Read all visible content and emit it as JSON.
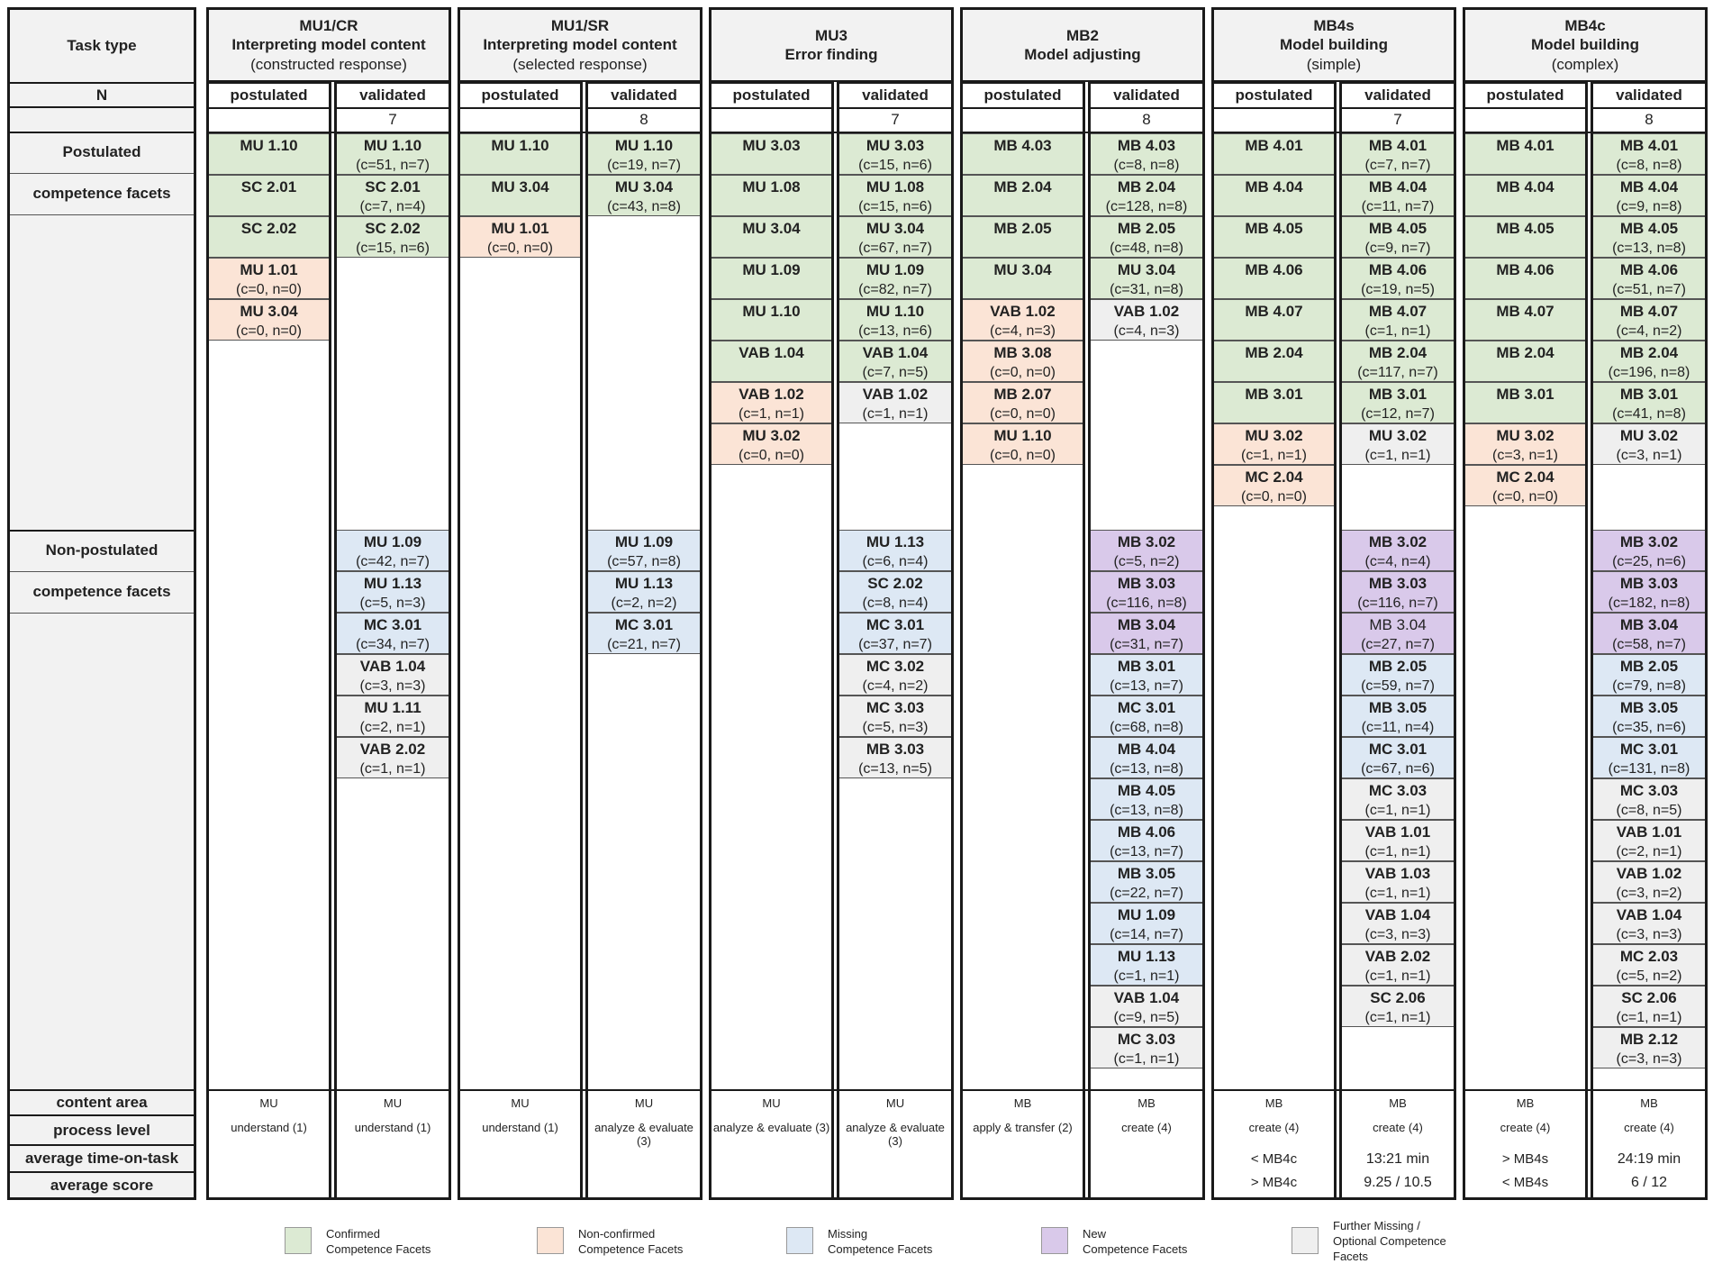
{
  "row_labels": {
    "task_type": "Task type",
    "n": "N",
    "postulated": [
      "Postulated",
      "competence facets"
    ],
    "non_postulated": [
      "Non-postulated",
      "competence facets"
    ],
    "content_area": "content area",
    "process_level": "process level",
    "avg_time": "average time-on-task",
    "avg_score": "average score"
  },
  "sub_labels": {
    "postulated": "postulated",
    "validated": "validated"
  },
  "colors": {
    "green": "#dcead3",
    "orange": "#fbe4d6",
    "blue": "#dde8f4",
    "purple": "#d9c9ea",
    "gray": "#efefef"
  },
  "groups": [
    {
      "code": "MU1/CR",
      "name": "Interpreting model content",
      "sub": "(constructed response)",
      "n": "7",
      "content_area": [
        "MU",
        "MU"
      ],
      "process_level": [
        "understand (1)",
        "understand (1)"
      ],
      "avg_time": [
        "",
        ""
      ],
      "avg_score": [
        "",
        ""
      ],
      "postulated": [
        {
          "slot": 0,
          "color": "green",
          "code": "MU 1.10"
        },
        {
          "slot": 1,
          "color": "green",
          "code": "SC 2.01"
        },
        {
          "slot": 2,
          "color": "green",
          "code": "SC 2.02"
        },
        {
          "slot": 3,
          "color": "orange",
          "code": "MU 1.01",
          "counts": "(c=0, n=0)"
        },
        {
          "slot": 4,
          "color": "orange",
          "code": "MU 3.04",
          "counts": "(c=0, n=0)"
        }
      ],
      "validated": [
        {
          "slot": 0,
          "color": "green",
          "code": "MU 1.10",
          "counts": "(c=51, n=7)"
        },
        {
          "slot": 1,
          "color": "green",
          "code": "SC 2.01",
          "counts": "(c=7, n=4)"
        },
        {
          "slot": 2,
          "color": "green",
          "code": "SC 2.02",
          "counts": "(c=15, n=6)"
        },
        {
          "slot": 10,
          "color": "blue",
          "code": "MU 1.09",
          "counts": "(c=42, n=7)"
        },
        {
          "slot": 11,
          "color": "blue",
          "code": "MU 1.13",
          "counts": "(c=5, n=3)"
        },
        {
          "slot": 12,
          "color": "blue",
          "code": "MC 3.01",
          "counts": "(c=34, n=7)"
        },
        {
          "slot": 13,
          "color": "gray",
          "code": "VAB 1.04",
          "counts": "(c=3, n=3)"
        },
        {
          "slot": 14,
          "color": "gray",
          "code": "MU 1.11",
          "counts": "(c=2, n=1)"
        },
        {
          "slot": 15,
          "color": "gray",
          "code": "VAB 2.02",
          "counts": "(c=1, n=1)"
        }
      ]
    },
    {
      "code": "MU1/SR",
      "name": "Interpreting model content",
      "sub": "(selected response)",
      "n": "8",
      "content_area": [
        "MU",
        "MU"
      ],
      "process_level": [
        "understand (1)",
        "analyze & evaluate (3)"
      ],
      "avg_time": [
        "",
        ""
      ],
      "avg_score": [
        "",
        ""
      ],
      "postulated": [
        {
          "slot": 0,
          "color": "green",
          "code": "MU 1.10"
        },
        {
          "slot": 1,
          "color": "green",
          "code": "MU 3.04"
        },
        {
          "slot": 2,
          "color": "orange",
          "code": "MU 1.01",
          "counts": "(c=0, n=0)"
        }
      ],
      "validated": [
        {
          "slot": 0,
          "color": "green",
          "code": "MU 1.10",
          "counts": "(c=19, n=7)"
        },
        {
          "slot": 1,
          "color": "green",
          "code": "MU 3.04",
          "counts": "(c=43, n=8)"
        },
        {
          "slot": 10,
          "color": "blue",
          "code": "MU 1.09",
          "counts": "(c=57, n=8)"
        },
        {
          "slot": 11,
          "color": "blue",
          "code": "MU 1.13",
          "counts": "(c=2, n=2)"
        },
        {
          "slot": 12,
          "color": "blue",
          "code": "MC 3.01",
          "counts": "(c=21, n=7)"
        }
      ]
    },
    {
      "code": "MU3",
      "name": "Error finding",
      "sub": "",
      "n": "7",
      "content_area": [
        "MU",
        "MU"
      ],
      "process_level": [
        "analyze & evaluate (3)",
        "analyze & evaluate (3)"
      ],
      "avg_time": [
        "",
        ""
      ],
      "avg_score": [
        "",
        ""
      ],
      "postulated": [
        {
          "slot": 0,
          "color": "green",
          "code": "MU 3.03"
        },
        {
          "slot": 1,
          "color": "green",
          "code": "MU 1.08"
        },
        {
          "slot": 2,
          "color": "green",
          "code": "MU 3.04"
        },
        {
          "slot": 3,
          "color": "green",
          "code": "MU 1.09"
        },
        {
          "slot": 4,
          "color": "green",
          "code": "MU 1.10"
        },
        {
          "slot": 5,
          "color": "green",
          "code": "VAB 1.04"
        },
        {
          "slot": 6,
          "color": "orange",
          "code": "VAB 1.02",
          "counts": "(c=1, n=1)"
        },
        {
          "slot": 7,
          "color": "orange",
          "code": "MU 3.02",
          "counts": "(c=0, n=0)"
        }
      ],
      "validated": [
        {
          "slot": 0,
          "color": "green",
          "code": "MU 3.03",
          "counts": "(c=15, n=6)"
        },
        {
          "slot": 1,
          "color": "green",
          "code": "MU 1.08",
          "counts": "(c=15, n=6)"
        },
        {
          "slot": 2,
          "color": "green",
          "code": "MU 3.04",
          "counts": "(c=67, n=7)"
        },
        {
          "slot": 3,
          "color": "green",
          "code": "MU 1.09",
          "counts": "(c=82, n=7)"
        },
        {
          "slot": 4,
          "color": "green",
          "code": "MU 1.10",
          "counts": "(c=13, n=6)"
        },
        {
          "slot": 5,
          "color": "green",
          "code": "VAB 1.04",
          "counts": "(c=7, n=5)"
        },
        {
          "slot": 6,
          "color": "gray",
          "code": "VAB 1.02",
          "counts": "(c=1, n=1)"
        },
        {
          "slot": 10,
          "color": "blue",
          "code": "MU 1.13",
          "counts": "(c=6, n=4)"
        },
        {
          "slot": 11,
          "color": "blue",
          "code": "SC 2.02",
          "counts": "(c=8, n=4)"
        },
        {
          "slot": 12,
          "color": "blue",
          "code": "MC 3.01",
          "counts": "(c=37, n=7)"
        },
        {
          "slot": 13,
          "color": "gray",
          "code": "MC 3.02",
          "counts": "(c=4, n=2)"
        },
        {
          "slot": 14,
          "color": "gray",
          "code": "MC 3.03",
          "counts": "(c=5, n=3)"
        },
        {
          "slot": 15,
          "color": "gray",
          "code": "MB 3.03",
          "counts": "(c=13, n=5)"
        }
      ]
    },
    {
      "code": "MB2",
      "name": "Model adjusting",
      "sub": "",
      "n": "8",
      "content_area": [
        "MB",
        "MB"
      ],
      "process_level": [
        "apply & transfer (2)",
        "create (4)"
      ],
      "avg_time": [
        "",
        ""
      ],
      "avg_score": [
        "",
        ""
      ],
      "postulated": [
        {
          "slot": 0,
          "color": "green",
          "code": "MB 4.03"
        },
        {
          "slot": 1,
          "color": "green",
          "code": "MB 2.04"
        },
        {
          "slot": 2,
          "color": "green",
          "code": "MB 2.05"
        },
        {
          "slot": 3,
          "color": "green",
          "code": "MU 3.04"
        },
        {
          "slot": 4,
          "color": "orange",
          "code": "VAB 1.02",
          "counts": "(c=4, n=3)"
        },
        {
          "slot": 5,
          "color": "orange",
          "code": "MB 3.08",
          "counts": "(c=0, n=0)"
        },
        {
          "slot": 6,
          "color": "orange",
          "code": "MB 2.07",
          "counts": "(c=0, n=0)"
        },
        {
          "slot": 7,
          "color": "orange",
          "code": "MU 1.10",
          "counts": "(c=0, n=0)"
        }
      ],
      "validated": [
        {
          "slot": 0,
          "color": "green",
          "code": "MB 4.03",
          "counts": "(c=8, n=8)"
        },
        {
          "slot": 1,
          "color": "green",
          "code": "MB 2.04",
          "counts": "(c=128, n=8)"
        },
        {
          "slot": 2,
          "color": "green",
          "code": "MB 2.05",
          "counts": "(c=48, n=8)"
        },
        {
          "slot": 3,
          "color": "green",
          "code": "MU 3.04",
          "counts": "(c=31, n=8)"
        },
        {
          "slot": 4,
          "color": "gray",
          "code": "VAB 1.02",
          "counts": "(c=4, n=3)"
        },
        {
          "slot": 10,
          "color": "purple",
          "code": "MB 3.02",
          "counts": "(c=5, n=2)"
        },
        {
          "slot": 11,
          "color": "purple",
          "code": "MB 3.03",
          "counts": "(c=116, n=8)"
        },
        {
          "slot": 12,
          "color": "purple",
          "code": "MB 3.04",
          "counts": "(c=31, n=7)"
        },
        {
          "slot": 13,
          "color": "blue",
          "code": "MB 3.01",
          "counts": "(c=13, n=7)"
        },
        {
          "slot": 14,
          "color": "blue",
          "code": "MC 3.01",
          "counts": "(c=68, n=8)"
        },
        {
          "slot": 15,
          "color": "blue",
          "code": "MB 4.04",
          "counts": "(c=13, n=8)"
        },
        {
          "slot": 16,
          "color": "blue",
          "code": "MB 4.05",
          "counts": "(c=13, n=8)"
        },
        {
          "slot": 17,
          "color": "blue",
          "code": "MB 4.06",
          "counts": "(c=13, n=7)"
        },
        {
          "slot": 18,
          "color": "blue",
          "code": "MB 3.05",
          "counts": "(c=22, n=7)"
        },
        {
          "slot": 19,
          "color": "blue",
          "code": "MU 1.09",
          "counts": "(c=14, n=7)"
        },
        {
          "slot": 20,
          "color": "blue",
          "code": "MU 1.13",
          "counts": "(c=1, n=1)"
        },
        {
          "slot": 21,
          "color": "gray",
          "code": "VAB 1.04",
          "counts": "(c=9, n=5)"
        },
        {
          "slot": 22,
          "color": "gray",
          "code": "MC 3.03",
          "counts": "(c=1, n=1)"
        }
      ]
    },
    {
      "code": "MB4s",
      "name": "Model building",
      "sub": "(simple)",
      "n": "7",
      "content_area": [
        "MB",
        "MB"
      ],
      "process_level": [
        "create (4)",
        "create (4)"
      ],
      "avg_time": [
        "< MB4c",
        "13:21 min"
      ],
      "avg_score": [
        "> MB4c",
        "9.25 / 10.5"
      ],
      "postulated": [
        {
          "slot": 0,
          "color": "green",
          "code": "MB 4.01"
        },
        {
          "slot": 1,
          "color": "green",
          "code": "MB 4.04"
        },
        {
          "slot": 2,
          "color": "green",
          "code": "MB 4.05"
        },
        {
          "slot": 3,
          "color": "green",
          "code": "MB 4.06"
        },
        {
          "slot": 4,
          "color": "green",
          "code": "MB 4.07"
        },
        {
          "slot": 5,
          "color": "green",
          "code": "MB 2.04"
        },
        {
          "slot": 6,
          "color": "green",
          "code": "MB 3.01"
        },
        {
          "slot": 7,
          "color": "orange",
          "code": "MU 3.02",
          "counts": "(c=1, n=1)"
        },
        {
          "slot": 8,
          "color": "orange",
          "code": "MC 2.04",
          "counts": "(c=0, n=0)"
        }
      ],
      "validated": [
        {
          "slot": 0,
          "color": "green",
          "code": "MB 4.01",
          "counts": "(c=7, n=7)"
        },
        {
          "slot": 1,
          "color": "green",
          "code": "MB 4.04",
          "counts": "(c=11, n=7)"
        },
        {
          "slot": 2,
          "color": "green",
          "code": "MB 4.05",
          "counts": "(c=9, n=7)"
        },
        {
          "slot": 3,
          "color": "green",
          "code": "MB 4.06",
          "counts": "(c=19, n=5)"
        },
        {
          "slot": 4,
          "color": "green",
          "code": "MB 4.07",
          "counts": "(c=1, n=1)"
        },
        {
          "slot": 5,
          "color": "green",
          "code": "MB 2.04",
          "counts": "(c=117, n=7)"
        },
        {
          "slot": 6,
          "color": "green",
          "code": "MB 3.01",
          "counts": "(c=12, n=7)"
        },
        {
          "slot": 7,
          "color": "gray",
          "code": "MU 3.02",
          "counts": "(c=1, n=1)"
        },
        {
          "slot": 10,
          "color": "purple",
          "code": "MB 3.02",
          "counts": "(c=4, n=4)"
        },
        {
          "slot": 11,
          "color": "purple",
          "code": "MB 3.03",
          "counts": "(c=116, n=7)"
        },
        {
          "slot": 12,
          "color": "purple",
          "code": "MB 3.04",
          "counts": "(c=27, n=7)",
          "plain": true
        },
        {
          "slot": 13,
          "color": "blue",
          "code": "MB 2.05",
          "counts": "(c=59, n=7)"
        },
        {
          "slot": 14,
          "color": "blue",
          "code": "MB 3.05",
          "counts": "(c=11, n=4)"
        },
        {
          "slot": 15,
          "color": "blue",
          "code": "MC 3.01",
          "counts": "(c=67, n=6)"
        },
        {
          "slot": 16,
          "color": "gray",
          "code": "MC 3.03",
          "counts": "(c=1, n=1)"
        },
        {
          "slot": 17,
          "color": "gray",
          "code": "VAB 1.01",
          "counts": "(c=1, n=1)"
        },
        {
          "slot": 18,
          "color": "gray",
          "code": "VAB 1.03",
          "counts": "(c=1, n=1)"
        },
        {
          "slot": 19,
          "color": "gray",
          "code": "VAB 1.04",
          "counts": "(c=3, n=3)"
        },
        {
          "slot": 20,
          "color": "gray",
          "code": "VAB 2.02",
          "counts": "(c=1, n=1)"
        },
        {
          "slot": 21,
          "color": "gray",
          "code": "SC 2.06",
          "counts": "(c=1, n=1)"
        }
      ]
    },
    {
      "code": "MB4c",
      "name": "Model building",
      "sub": "(complex)",
      "n": "8",
      "content_area": [
        "MB",
        "MB"
      ],
      "process_level": [
        "create (4)",
        "create (4)"
      ],
      "avg_time": [
        "> MB4s",
        "24:19 min"
      ],
      "avg_score": [
        "< MB4s",
        "6 / 12"
      ],
      "postulated": [
        {
          "slot": 0,
          "color": "green",
          "code": "MB 4.01"
        },
        {
          "slot": 1,
          "color": "green",
          "code": "MB 4.04"
        },
        {
          "slot": 2,
          "color": "green",
          "code": "MB 4.05"
        },
        {
          "slot": 3,
          "color": "green",
          "code": "MB 4.06"
        },
        {
          "slot": 4,
          "color": "green",
          "code": "MB 4.07"
        },
        {
          "slot": 5,
          "color": "green",
          "code": "MB 2.04"
        },
        {
          "slot": 6,
          "color": "green",
          "code": "MB 3.01"
        },
        {
          "slot": 7,
          "color": "orange",
          "code": "MU 3.02",
          "counts": "(c=3, n=1)"
        },
        {
          "slot": 8,
          "color": "orange",
          "code": "MC 2.04",
          "counts": "(c=0, n=0)"
        }
      ],
      "validated": [
        {
          "slot": 0,
          "color": "green",
          "code": "MB 4.01",
          "counts": "(c=8, n=8)"
        },
        {
          "slot": 1,
          "color": "green",
          "code": "MB 4.04",
          "counts": "(c=9, n=8)"
        },
        {
          "slot": 2,
          "color": "green",
          "code": "MB 4.05",
          "counts": "(c=13, n=8)"
        },
        {
          "slot": 3,
          "color": "green",
          "code": "MB 4.06",
          "counts": "(c=51, n=7)"
        },
        {
          "slot": 4,
          "color": "green",
          "code": "MB 4.07",
          "counts": "(c=4, n=2)"
        },
        {
          "slot": 5,
          "color": "green",
          "code": "MB 2.04",
          "counts": "(c=196, n=8)"
        },
        {
          "slot": 6,
          "color": "green",
          "code": "MB 3.01",
          "counts": "(c=41, n=8)"
        },
        {
          "slot": 7,
          "color": "gray",
          "code": "MU 3.02",
          "counts": "(c=3, n=1)"
        },
        {
          "slot": 10,
          "color": "purple",
          "code": "MB 3.02",
          "counts": "(c=25, n=6)"
        },
        {
          "slot": 11,
          "color": "purple",
          "code": "MB 3.03",
          "counts": "(c=182, n=8)"
        },
        {
          "slot": 12,
          "color": "purple",
          "code": "MB 3.04",
          "counts": "(c=58, n=7)"
        },
        {
          "slot": 13,
          "color": "blue",
          "code": "MB 2.05",
          "counts": "(c=79, n=8)"
        },
        {
          "slot": 14,
          "color": "blue",
          "code": "MB 3.05",
          "counts": "(c=35, n=6)"
        },
        {
          "slot": 15,
          "color": "blue",
          "code": "MC 3.01",
          "counts": "(c=131, n=8)"
        },
        {
          "slot": 16,
          "color": "gray",
          "code": "MC 3.03",
          "counts": "(c=8, n=5)"
        },
        {
          "slot": 17,
          "color": "gray",
          "code": "VAB 1.01",
          "counts": "(c=2, n=1)"
        },
        {
          "slot": 18,
          "color": "gray",
          "code": "VAB 1.02",
          "counts": "(c=3, n=2)"
        },
        {
          "slot": 19,
          "color": "gray",
          "code": "VAB 1.04",
          "counts": "(c=3, n=3)"
        },
        {
          "slot": 20,
          "color": "gray",
          "code": "MC 2.03",
          "counts": "(c=5, n=2)"
        },
        {
          "slot": 21,
          "color": "gray",
          "code": "SC 2.06",
          "counts": "(c=1, n=1)"
        },
        {
          "slot": 22,
          "color": "gray",
          "code": "MB 2.12",
          "counts": "(c=3, n=3)"
        }
      ]
    }
  ],
  "legend": [
    {
      "color": "green",
      "label": [
        "Confirmed",
        "Competence Facets"
      ]
    },
    {
      "color": "orange",
      "label": [
        "Non-confirmed",
        "Competence Facets"
      ]
    },
    {
      "color": "blue",
      "label": [
        "Missing",
        "Competence Facets"
      ]
    },
    {
      "color": "purple",
      "label": [
        "New",
        "Competence Facets"
      ]
    },
    {
      "color": "gray",
      "label": [
        "Further Missing /",
        "Optional Competence",
        "Facets"
      ]
    }
  ]
}
